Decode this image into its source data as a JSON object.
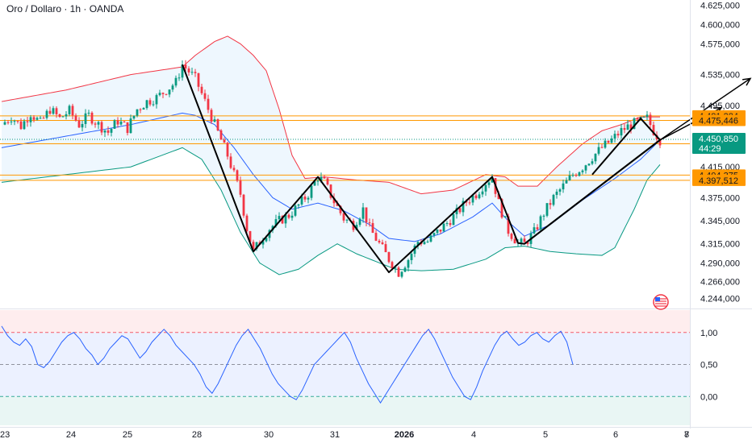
{
  "header": {
    "title": "Oro / Dollaro · 1h · OANDA"
  },
  "colors": {
    "up": "#089981",
    "down": "#f23645",
    "bb_upper": "#f23645",
    "bb_lower": "#089981",
    "bb_basis": "#2962ff",
    "bb_fill": "#2196f3",
    "level": "#ff9800",
    "current_price_bg": "#089981",
    "current_price_line": "#089981",
    "oscillator": "#2962ff"
  },
  "current_price": {
    "value": "4.450,850",
    "countdown": "44:29"
  },
  "chart_data": [
    {
      "type": "candlestick",
      "title": "Oro / Dollaro · 1h · OANDA",
      "price_axis_labels": [
        "4.625,000",
        "4.600,000",
        "4.575,000",
        "4.535,000",
        "4.495,000",
        "4.450,000",
        "4.415,000",
        "4.375,000",
        "4.345,000",
        "4.315,000",
        "4.290,000",
        "4.266,000",
        "4.244,000"
      ],
      "price_axis_values": [
        4625,
        4600,
        4575,
        4535,
        4495,
        4450,
        4415,
        4375,
        4345,
        4315,
        4290,
        4266,
        4244
      ],
      "time_axis_labels": [
        "23",
        "24",
        "25",
        "28",
        "30",
        "31",
        "2026",
        "4",
        "5",
        "6",
        "7",
        "8"
      ],
      "ylim": [
        4232,
        4632
      ],
      "horizontal_levels": [
        {
          "label": "4.481,384",
          "value": 4481.384
        },
        {
          "label": "4.475,446",
          "value": 4475.446
        },
        {
          "label": "4.445,140",
          "value": 4445.14
        },
        {
          "label": "4.404,375",
          "value": 4404.375
        },
        {
          "label": "4.397,512",
          "value": 4397.512
        }
      ],
      "close_path": [
        [
          0,
          4470
        ],
        [
          3,
          4480
        ],
        [
          6,
          4468
        ],
        [
          9,
          4485
        ],
        [
          12,
          4472
        ],
        [
          15,
          4490
        ],
        [
          18,
          4478
        ],
        [
          21,
          4488
        ],
        [
          24,
          4470
        ],
        [
          27,
          4482
        ],
        [
          30,
          4470
        ],
        [
          33,
          4460
        ],
        [
          36,
          4475
        ],
        [
          39,
          4465
        ],
        [
          42,
          4490
        ],
        [
          45,
          4500
        ],
        [
          48,
          4505
        ],
        [
          51,
          4515
        ],
        [
          54,
          4525
        ],
        [
          56,
          4548
        ],
        [
          60,
          4530
        ],
        [
          63,
          4500
        ],
        [
          66,
          4470
        ],
        [
          70,
          4430
        ],
        [
          74,
          4380
        ],
        [
          76,
          4335
        ],
        [
          78,
          4305
        ],
        [
          80,
          4318
        ],
        [
          83,
          4335
        ],
        [
          86,
          4345
        ],
        [
          89,
          4352
        ],
        [
          92,
          4365
        ],
        [
          95,
          4380
        ],
        [
          98,
          4402
        ],
        [
          100,
          4395
        ],
        [
          103,
          4370
        ],
        [
          106,
          4348
        ],
        [
          109,
          4340
        ],
        [
          112,
          4360
        ],
        [
          114,
          4335
        ],
        [
          117,
          4315
        ],
        [
          120,
          4295
        ],
        [
          123,
          4278
        ],
        [
          126,
          4295
        ],
        [
          129,
          4318
        ],
        [
          132,
          4318
        ],
        [
          135,
          4330
        ],
        [
          138,
          4342
        ],
        [
          141,
          4355
        ],
        [
          144,
          4370
        ],
        [
          147,
          4380
        ],
        [
          150,
          4395
        ],
        [
          152,
          4402
        ],
        [
          154,
          4368
        ],
        [
          157,
          4332
        ],
        [
          160,
          4316
        ],
        [
          162,
          4315
        ],
        [
          165,
          4330
        ],
        [
          168,
          4355
        ],
        [
          171,
          4375
        ],
        [
          174,
          4390
        ],
        [
          177,
          4405
        ],
        [
          180,
          4415
        ],
        [
          183,
          4428
        ],
        [
          186,
          4440
        ],
        [
          189,
          4450
        ],
        [
          192,
          4462
        ],
        [
          195,
          4470
        ],
        [
          198,
          4474
        ],
        [
          200,
          4478
        ],
        [
          202,
          4462
        ],
        [
          204,
          4450
        ]
      ],
      "bollinger": {
        "upper": [
          [
            0,
            4500
          ],
          [
            20,
            4515
          ],
          [
            40,
            4535
          ],
          [
            56,
            4545
          ],
          [
            60,
            4560
          ],
          [
            66,
            4578
          ],
          [
            70,
            4585
          ],
          [
            74,
            4575
          ],
          [
            78,
            4560
          ],
          [
            82,
            4540
          ],
          [
            86,
            4490
          ],
          [
            90,
            4430
          ],
          [
            94,
            4400
          ],
          [
            100,
            4402
          ],
          [
            110,
            4398
          ],
          [
            120,
            4395
          ],
          [
            130,
            4380
          ],
          [
            140,
            4385
          ],
          [
            150,
            4405
          ],
          [
            156,
            4402
          ],
          [
            160,
            4390
          ],
          [
            166,
            4390
          ],
          [
            172,
            4415
          ],
          [
            180,
            4445
          ],
          [
            186,
            4462
          ],
          [
            192,
            4470
          ],
          [
            198,
            4480
          ],
          [
            204,
            4480
          ]
        ],
        "basis": [
          [
            0,
            4440
          ],
          [
            20,
            4455
          ],
          [
            40,
            4470
          ],
          [
            56,
            4485
          ],
          [
            60,
            4482
          ],
          [
            66,
            4470
          ],
          [
            72,
            4440
          ],
          [
            78,
            4405
          ],
          [
            84,
            4375
          ],
          [
            90,
            4360
          ],
          [
            98,
            4368
          ],
          [
            106,
            4358
          ],
          [
            114,
            4340
          ],
          [
            120,
            4322
          ],
          [
            128,
            4318
          ],
          [
            136,
            4328
          ],
          [
            146,
            4350
          ],
          [
            152,
            4368
          ],
          [
            158,
            4340
          ],
          [
            162,
            4325
          ],
          [
            170,
            4340
          ],
          [
            180,
            4372
          ],
          [
            190,
            4400
          ],
          [
            198,
            4425
          ],
          [
            204,
            4450
          ]
        ],
        "lower": [
          [
            0,
            4395
          ],
          [
            10,
            4400
          ],
          [
            20,
            4405
          ],
          [
            40,
            4415
          ],
          [
            56,
            4440
          ],
          [
            62,
            4425
          ],
          [
            68,
            4385
          ],
          [
            74,
            4330
          ],
          [
            80,
            4290
          ],
          [
            86,
            4275
          ],
          [
            92,
            4282
          ],
          [
            98,
            4300
          ],
          [
            104,
            4315
          ],
          [
            110,
            4302
          ],
          [
            116,
            4292
          ],
          [
            122,
            4282
          ],
          [
            130,
            4280
          ],
          [
            140,
            4282
          ],
          [
            150,
            4295
          ],
          [
            156,
            4310
          ],
          [
            162,
            4312
          ],
          [
            170,
            4305
          ],
          [
            178,
            4302
          ],
          [
            186,
            4300
          ],
          [
            190,
            4310
          ],
          [
            196,
            4360
          ],
          [
            200,
            4398
          ],
          [
            204,
            4418
          ]
        ]
      },
      "pattern_lines": [
        [
          [
            56,
            4548
          ],
          [
            78,
            4305
          ],
          [
            98,
            4402
          ],
          [
            120,
            4278
          ],
          [
            152,
            4402
          ],
          [
            160,
            4316
          ],
          [
            162,
            4315
          ],
          [
            204,
            4450
          ]
        ],
        [
          [
            162,
            4315
          ],
          [
            204,
            4450
          ]
        ],
        [
          [
            183,
            4405
          ],
          [
            198,
            4478
          ],
          [
            204,
            4450
          ]
        ]
      ],
      "arrows": [
        [
          [
            204,
            4450
          ],
          [
            223,
            4492
          ]
        ],
        [
          [
            204,
            4450
          ],
          [
            232,
            4530
          ]
        ]
      ]
    },
    {
      "type": "line",
      "title": "",
      "axis_labels": [
        "1,00",
        "0,50",
        "0,00"
      ],
      "axis_values": [
        1.0,
        0.5,
        0.0
      ],
      "ylim": [
        -0.45,
        1.35
      ],
      "series": [
        {
          "values": [
            1.1,
            0.95,
            0.85,
            0.8,
            0.9,
            0.78,
            0.5,
            0.45,
            0.55,
            0.7,
            0.85,
            0.95,
            1.0,
            0.9,
            0.75,
            0.65,
            0.5,
            0.6,
            0.75,
            0.85,
            0.95,
            0.9,
            0.75,
            0.6,
            0.7,
            0.85,
            0.95,
            1.05,
            0.95,
            0.8,
            0.7,
            0.6,
            0.5,
            0.35,
            0.15,
            0.05,
            0.2,
            0.4,
            0.6,
            0.8,
            0.95,
            1.05,
            0.9,
            0.75,
            0.55,
            0.35,
            0.2,
            0.1,
            0.0,
            -0.05,
            0.1,
            0.3,
            0.5,
            0.6,
            0.7,
            0.8,
            0.9,
            1.0,
            0.85,
            0.6,
            0.4,
            0.2,
            0.05,
            -0.1,
            0.05,
            0.2,
            0.35,
            0.5,
            0.65,
            0.8,
            0.95,
            1.05,
            0.9,
            0.7,
            0.5,
            0.3,
            0.15,
            0.0,
            -0.05,
            0.15,
            0.4,
            0.6,
            0.8,
            0.95,
            1.02,
            0.9,
            0.8,
            0.85,
            0.95,
            1.0,
            0.9,
            0.85,
            0.95,
            1.02,
            0.85,
            0.5
          ]
        }
      ]
    }
  ]
}
